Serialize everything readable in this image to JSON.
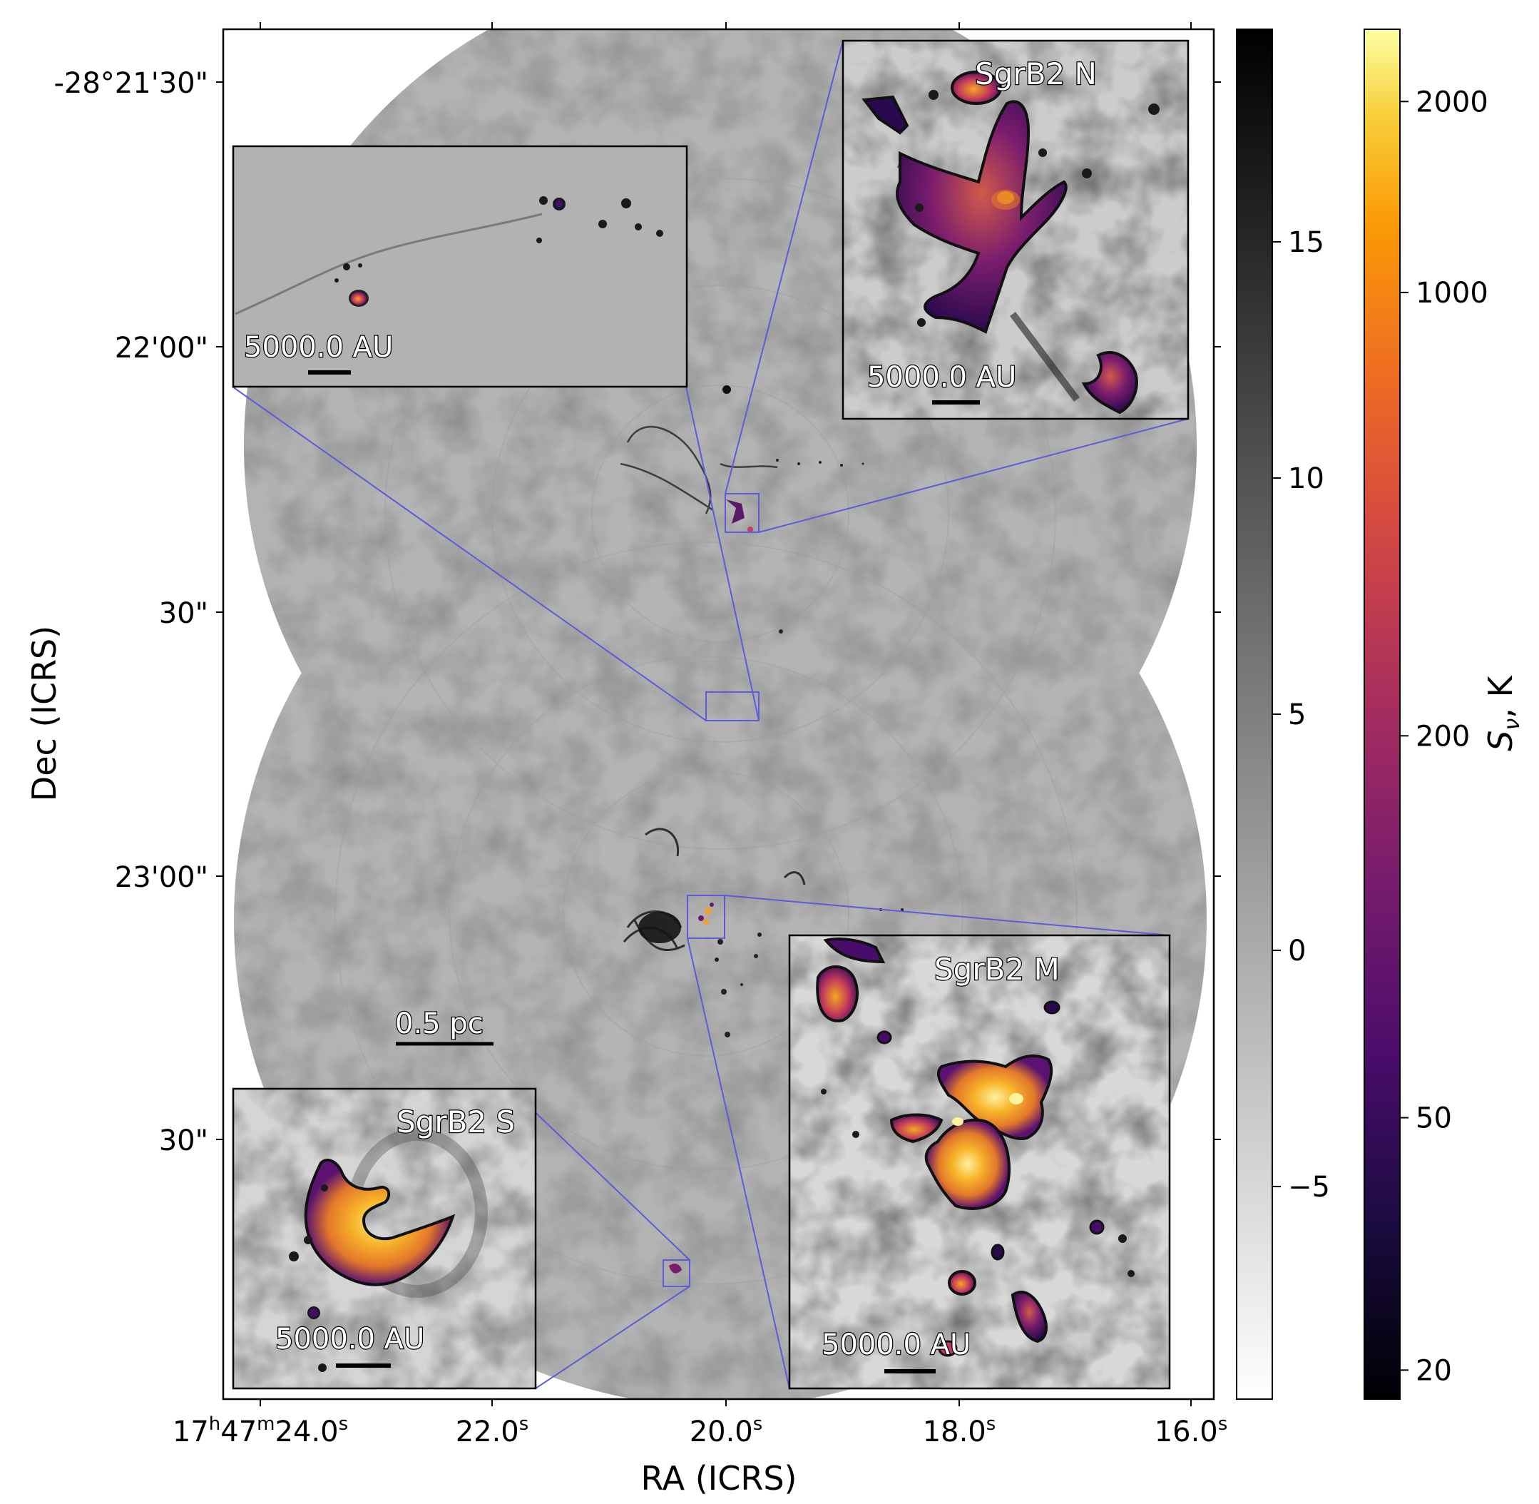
{
  "axes": {
    "xlabel": "RA (ICRS)",
    "ylabel": "Dec (ICRS)",
    "x_ticks": [
      {
        "pre": "17",
        "h": "h",
        "mid": "47",
        "m": "m",
        "post": "24.0",
        "s": "s"
      },
      {
        "pre": "22.0",
        "s": "s"
      },
      {
        "pre": "20.0",
        "s": "s"
      },
      {
        "pre": "18.0",
        "s": "s"
      },
      {
        "pre": "16.0",
        "s": "s"
      }
    ],
    "y_ticks": [
      "-28°21'30\"",
      "22'00\"",
      "30\"",
      "23'00\"",
      "30\""
    ]
  },
  "scalebar_main": "0.5 pc",
  "insets": [
    {
      "id": "filament",
      "title": "",
      "scalebar": "5000.0 AU"
    },
    {
      "id": "north",
      "title": "SgrB2 N",
      "scalebar": "5000.0 AU"
    },
    {
      "id": "middle",
      "title": "SgrB2 M",
      "scalebar": "5000.0 AU"
    },
    {
      "id": "south",
      "title": "SgrB2 S",
      "scalebar": "5000.0 AU"
    }
  ],
  "colorbar_gray": {
    "ticks": [
      "15",
      "10",
      "5",
      "0",
      "−5"
    ],
    "tick_values": [
      15,
      10,
      5,
      0,
      -5
    ],
    "range": [
      -9.5,
      19.5
    ],
    "colors": [
      "#ffffff",
      "#000000"
    ]
  },
  "colorbar_inferno": {
    "label": "Sν, K",
    "ticks": [
      "2000",
      "1000",
      "200",
      "50",
      "20"
    ],
    "tick_values": [
      2000,
      1000,
      200,
      50,
      20
    ],
    "scale": "log",
    "range": [
      18,
      2600
    ]
  },
  "colors": {
    "frame": "#000000",
    "zoom_lines": "#5b5bdc",
    "inferno_low": "#000004",
    "inferno_high": "#fcffa4"
  }
}
